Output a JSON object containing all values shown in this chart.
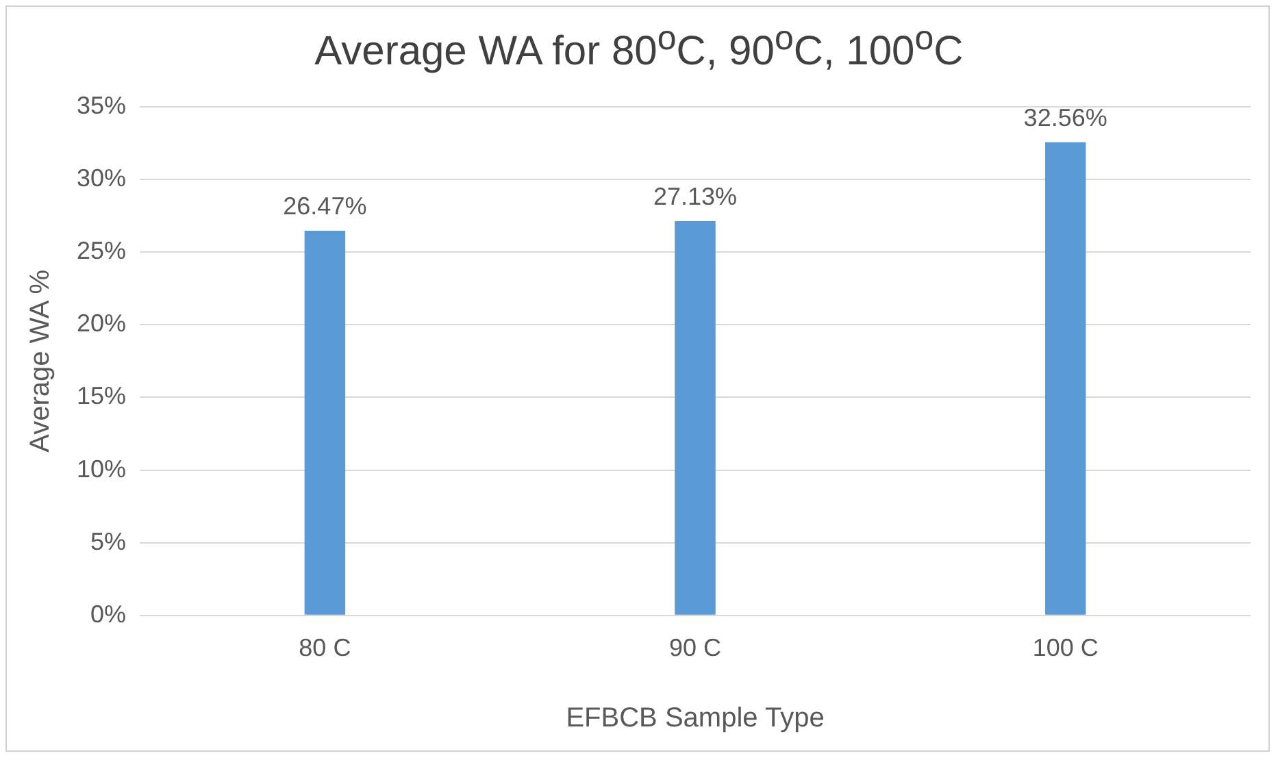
{
  "chart_data": {
    "type": "bar",
    "title": "Average WA for 80$^{o}$C, 90$^{o}$C, 100$^{o}$C",
    "xlabel": "EFBCB Sample Type",
    "ylabel": "Average WA %",
    "categories": [
      "80 C",
      "90 C",
      "100 C"
    ],
    "values": [
      26.47,
      27.13,
      32.56
    ],
    "color": "#5b9bd5",
    "value_labels": [
      "26.47%",
      "27.13%",
      "32.56%"
    ],
    "ylim": [
      0,
      35
    ],
    "yticks": [
      {
        "value": 0,
        "label": "0%"
      },
      {
        "value": 5,
        "label": "5%"
      },
      {
        "value": 10,
        "label": "10%"
      },
      {
        "value": 15,
        "label": "15%"
      },
      {
        "value": 20,
        "label": "20%"
      },
      {
        "value": 25,
        "label": "25%"
      },
      {
        "value": 30,
        "label": "30%"
      },
      {
        "value": 35,
        "label": "35%"
      }
    ],
    "grid": "y",
    "legend": false
  }
}
